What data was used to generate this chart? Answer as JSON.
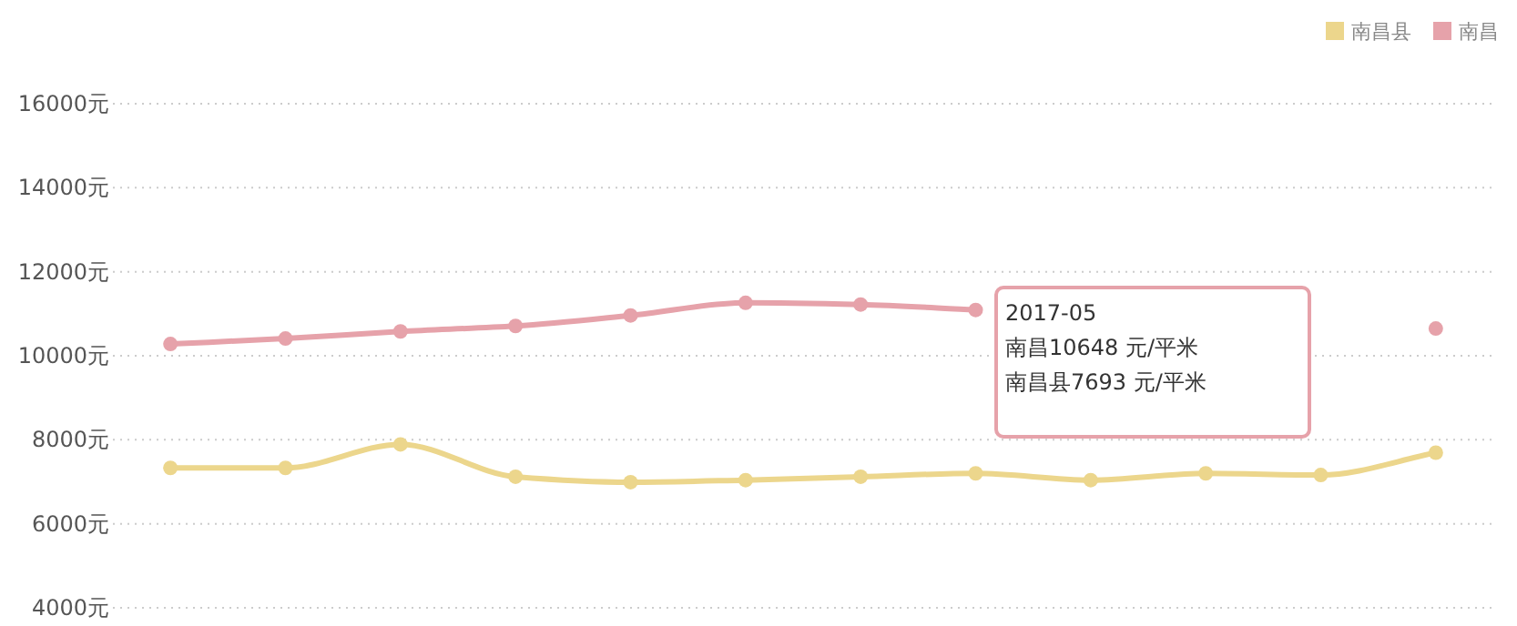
{
  "chart_data": {
    "type": "line",
    "categories": [
      null,
      null,
      null,
      null,
      null,
      null,
      null,
      null,
      null,
      null,
      null,
      null
    ],
    "series": [
      {
        "name": "南昌县",
        "color": "#ecd68c",
        "values": [
          7330,
          7330,
          7890,
          7120,
          6990,
          7040,
          7120,
          7200,
          7040,
          7200,
          7160,
          7693
        ]
      },
      {
        "name": "南昌",
        "color": "#e6a2aa",
        "values": [
          10280,
          10410,
          10580,
          10710,
          10960,
          11260,
          11220,
          11090,
          null,
          null,
          null,
          10648
        ]
      }
    ],
    "ylim": [
      4000,
      16000
    ],
    "yticks": [
      {
        "value": 4000,
        "label": "4000元"
      },
      {
        "value": 6000,
        "label": "6000元"
      },
      {
        "value": 8000,
        "label": "8000元"
      },
      {
        "value": 10000,
        "label": "10000元"
      },
      {
        "value": 12000,
        "label": "12000元"
      },
      {
        "value": 14000,
        "label": "14000元"
      },
      {
        "value": 16000,
        "label": "16000元"
      }
    ],
    "grid": "y",
    "legend": "top right",
    "marker": "circle",
    "line_style": "solid",
    "annotations": [
      "2017-05",
      "南昌10648 元/平米",
      "南昌县7693 元/平米"
    ]
  }
}
